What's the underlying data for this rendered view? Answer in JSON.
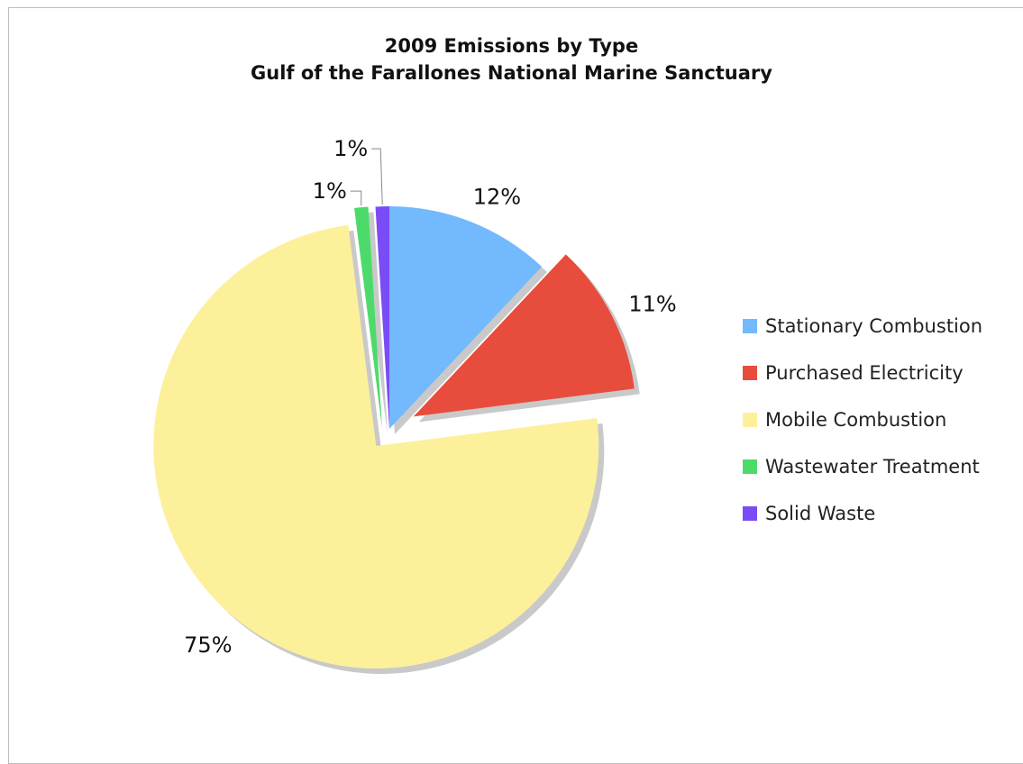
{
  "chart_data": {
    "type": "pie",
    "title": "2009 Emissions by Type",
    "subtitle": "Gulf of the Farallones National Marine Sanctuary",
    "slices": [
      {
        "label": "Stationary Combustion",
        "value": 12,
        "display": "12%",
        "color": "#72b9fd",
        "exploded": false
      },
      {
        "label": "Purchased Electricity",
        "value": 11,
        "display": "11%",
        "color": "#e84c3c",
        "exploded": true
      },
      {
        "label": "Mobile Combustion",
        "value": 75,
        "display": "75%",
        "color": "#fdf09b",
        "exploded": true
      },
      {
        "label": "Wastewater Treatment",
        "value": 1,
        "display": "1%",
        "color": "#4cdb6b",
        "exploded": false
      },
      {
        "label": "Solid Waste",
        "value": 1,
        "display": "1%",
        "color": "#7b4cf5",
        "exploded": false
      }
    ],
    "legend_position": "right"
  }
}
